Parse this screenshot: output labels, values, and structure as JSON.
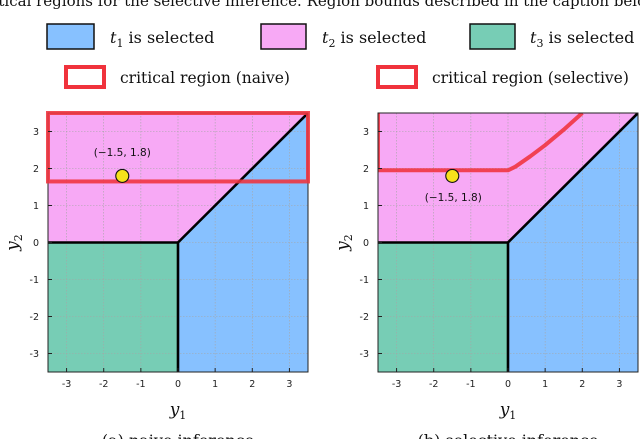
{
  "header_fragment": "critical regions for the selective inference. Region bounds described in the caption below.",
  "legend": {
    "regions": [
      {
        "math": "t",
        "sub": "1",
        "text": " is selected",
        "color": "#87c1ff"
      },
      {
        "math": "t",
        "sub": "2",
        "text": " is selected",
        "color": "#f7a9f5"
      },
      {
        "math": "t",
        "sub": "3",
        "text": " is selected",
        "color": "#77cdb5"
      }
    ],
    "critical_naive": "critical region (naive)",
    "critical_selective": "critical region (selective)"
  },
  "colors": {
    "t1": "#87c1ff",
    "t2": "#f7a9f5",
    "t3": "#77cdb5",
    "critical": "#f0323c",
    "point": "#f6e21b",
    "boundary": "#000000",
    "grid": "#a6a6a6"
  },
  "chart_data": [
    {
      "type": "region",
      "caption": "(a) naive inference",
      "xlabel": "y",
      "xlabel_sub": "1",
      "ylabel": "y",
      "ylabel_sub": "2",
      "xlim": [
        -3.5,
        3.5
      ],
      "ylim": [
        -3.5,
        3.5
      ],
      "xticks": [
        -3,
        -2,
        -1,
        0,
        1,
        2,
        3
      ],
      "yticks": [
        -3,
        -2,
        -1,
        0,
        1,
        2,
        3
      ],
      "grid": true,
      "regions": {
        "t1": "y1 > 0 and y2 < y1",
        "t2": "y2 > 0 and y2 > y1",
        "t3": "y1 < 0 and y2 < 0"
      },
      "critical_region": {
        "y2_min": 1.65
      },
      "point": {
        "x": -1.5,
        "y": 1.8,
        "label": "(−1.5,  1.8)"
      }
    },
    {
      "type": "region",
      "caption": "(b) selective inference",
      "xlabel": "y",
      "xlabel_sub": "1",
      "ylabel": "y",
      "ylabel_sub": "2",
      "xlim": [
        -3.5,
        3.5
      ],
      "ylim": [
        -3.5,
        3.5
      ],
      "xticks": [
        -3,
        -2,
        -1,
        0,
        1,
        2,
        3
      ],
      "yticks": [
        -3,
        -2,
        -1,
        0,
        1,
        2,
        3
      ],
      "grid": true,
      "regions": {
        "t1": "y1 > 0 and y2 < y1",
        "t2": "y2 > 0 and y2 > y1",
        "t3": "y1 < 0 and y2 < 0"
      },
      "critical_region": {
        "outline": [
          [
            -3.5,
            3.5
          ],
          [
            -3.5,
            1.95
          ],
          [
            0.0,
            1.95
          ],
          [
            0.2,
            2.05
          ],
          [
            0.6,
            2.33
          ],
          [
            1.0,
            2.63
          ],
          [
            1.5,
            3.05
          ],
          [
            2.0,
            3.5
          ]
        ]
      },
      "point": {
        "x": -1.5,
        "y": 1.8,
        "label": "(−1.5,  1.8)"
      }
    }
  ]
}
